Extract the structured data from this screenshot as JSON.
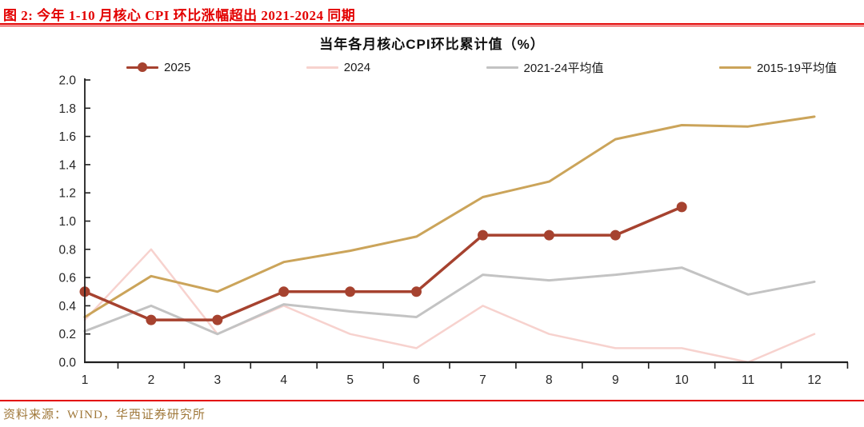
{
  "header": {
    "title": "图 2: 今年 1-10 月核心 CPI 环比涨幅超出 2021-2024 同期"
  },
  "footer": {
    "source": "资料来源：WIND，华西证券研究所"
  },
  "colors": {
    "header_red": "#E30000",
    "rule_red": "#E30000",
    "source_text": "#A0783A",
    "axis": "#1f1f1f",
    "tick_label": "#262626"
  },
  "chart_data": {
    "type": "line",
    "title": "当年各月核心CPI环比累计值（%）",
    "xlabel": "",
    "ylabel": "",
    "x": [
      1,
      2,
      3,
      4,
      5,
      6,
      7,
      8,
      9,
      10,
      11,
      12
    ],
    "xticks": [
      "1",
      "2",
      "3",
      "4",
      "5",
      "6",
      "7",
      "8",
      "9",
      "10",
      "11",
      "12"
    ],
    "yticks": [
      "0.0",
      "0.2",
      "0.4",
      "0.6",
      "0.8",
      "1.0",
      "1.2",
      "1.4",
      "1.6",
      "1.8",
      "2.0"
    ],
    "ylim": [
      0.0,
      2.0
    ],
    "ytick_step": 0.2,
    "grid": false,
    "legend_position": "top",
    "series": [
      {
        "name": "2024",
        "color": "#F7D2CE",
        "marker": "none",
        "line_width": 2.5,
        "values": [
          0.3,
          0.8,
          0.2,
          0.4,
          0.2,
          0.1,
          0.4,
          0.2,
          0.1,
          0.1,
          0.0,
          0.2
        ]
      },
      {
        "name": "2021-24平均值",
        "color": "#C3C3C3",
        "marker": "none",
        "line_width": 3,
        "values": [
          0.22,
          0.4,
          0.2,
          0.41,
          0.36,
          0.32,
          0.62,
          0.58,
          0.62,
          0.67,
          0.48,
          0.57
        ]
      },
      {
        "name": "2015-19平均值",
        "color": "#CBA45A",
        "marker": "none",
        "line_width": 3,
        "values": [
          0.32,
          0.61,
          0.5,
          0.71,
          0.79,
          0.89,
          1.17,
          1.28,
          1.58,
          1.68,
          1.67,
          1.74
        ]
      },
      {
        "name": "2025",
        "color": "#A6422F",
        "marker": "circle",
        "line_width": 3.5,
        "values": [
          0.5,
          0.3,
          0.3,
          0.5,
          0.5,
          0.5,
          0.9,
          0.9,
          0.9,
          1.1,
          null,
          null
        ]
      }
    ],
    "legend_order": [
      "2025",
      "2024",
      "2021-24平均值",
      "2015-19平均值"
    ]
  }
}
